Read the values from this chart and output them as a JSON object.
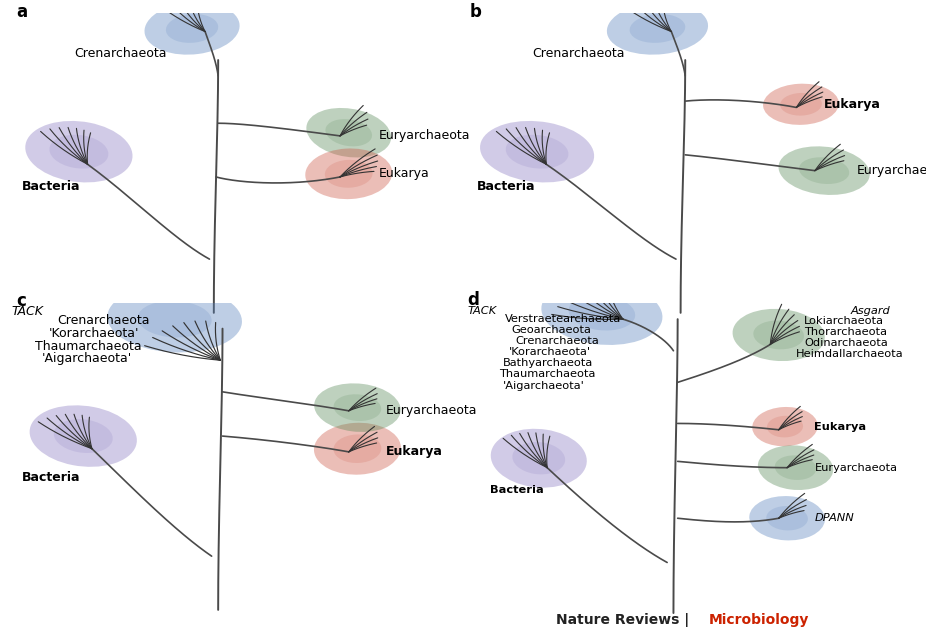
{
  "bg": "#ffffff",
  "tc": "#4a4a4a",
  "lc": "#333333",
  "colors": {
    "bacteria": "#8878C0",
    "cren_tack": "#5580BB",
    "eury": "#558855",
    "euk": "#CC5544",
    "dpann": "#5580BB",
    "asgard": "#558855"
  },
  "panel_a": {
    "label": "a",
    "bacteria_label": "Bacteria",
    "cren_label": "Crenarchaeota",
    "eury_label": "Euryarchaeota",
    "euk_label": "Eukarya"
  },
  "panel_b": {
    "label": "b",
    "bacteria_label": "Bacteria",
    "cren_label": "Crenarchaeota",
    "eury_label": "Euryarchaeota",
    "euk_label": "Eukarya"
  },
  "panel_c": {
    "label": "c",
    "tack_label": "TACK",
    "tack_members": [
      "Crenarchaeota",
      "'Korarchaeota'",
      "Thaumarchaeota",
      "'Aigarchaeota'"
    ],
    "bacteria_label": "Bacteria",
    "eury_label": "Euryarchaeota",
    "euk_label": "Eukarya"
  },
  "panel_d": {
    "label": "d",
    "tack_label": "TACK",
    "tack_members": [
      "Verstraetearchaeota",
      "Geoarchaeota",
      "Crenarchaeota",
      "'Korarchaeota'",
      "Bathyarchaeota",
      "Thaumarchaeota",
      "'Aigarchaeota'"
    ],
    "asgard_label": "Asgard",
    "asgard_members": [
      "Lokiarchaeota",
      "Thorarchaeota",
      "Odinarchaeota",
      "Heimdallarchaeota"
    ],
    "bacteria_label": "Bacteria",
    "eury_label": "Euryarchaeota",
    "euk_label": "Eukarya",
    "dpann_label": "DPANN"
  },
  "footer_main": "Nature Reviews | ",
  "footer_micro": "Microbiology"
}
